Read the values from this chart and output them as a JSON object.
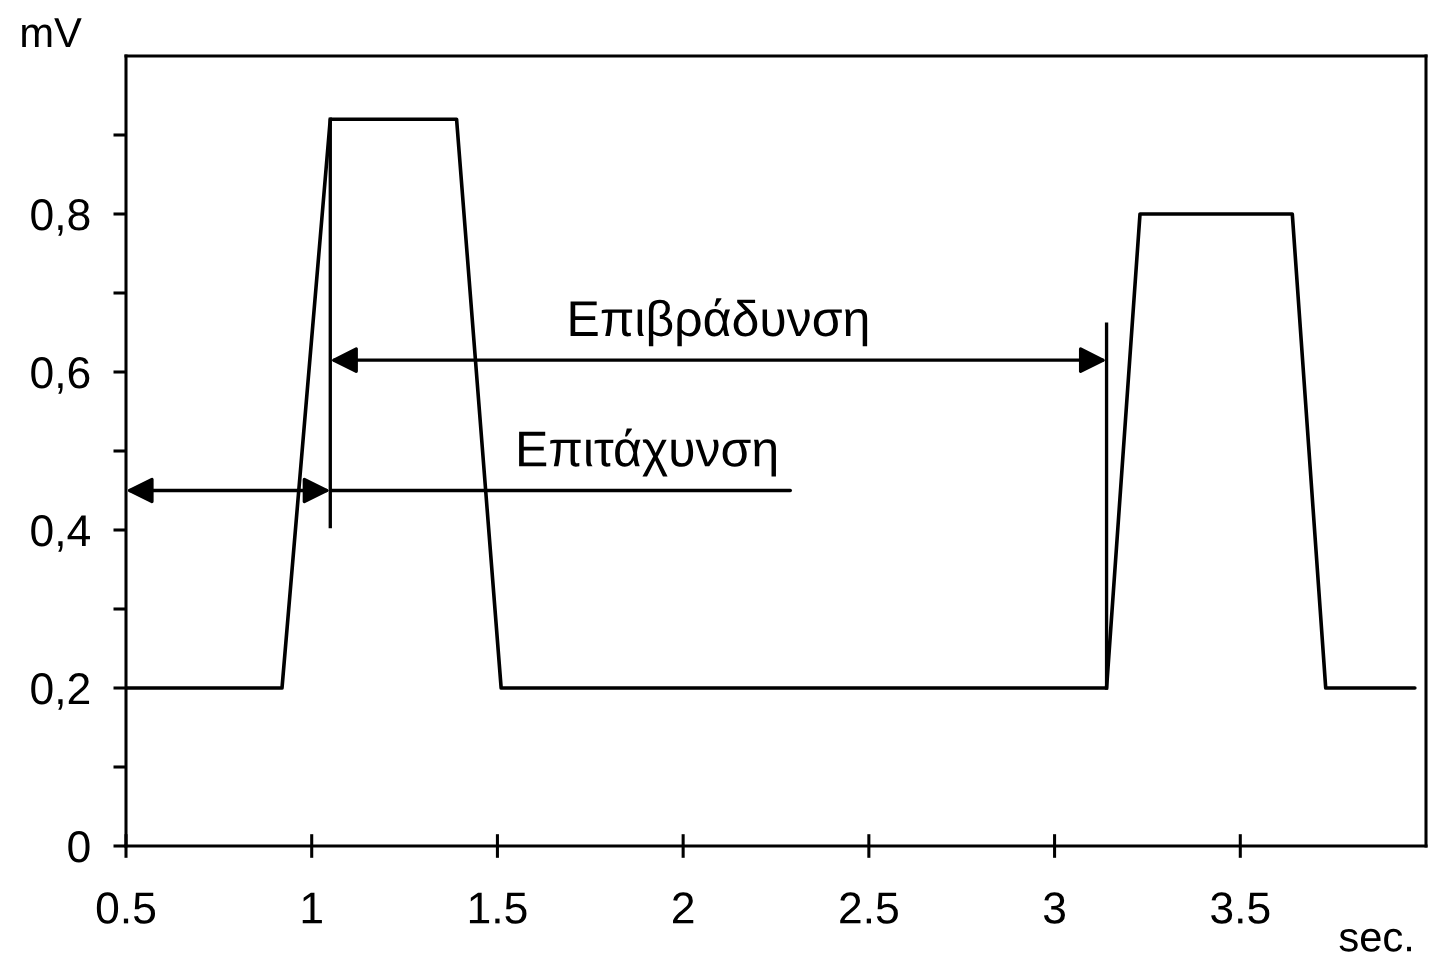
{
  "chart_data": {
    "type": "line",
    "xlabel": "sec.",
    "ylabel": "mV",
    "x": [
      0.5,
      0.92,
      1.05,
      1.39,
      1.51,
      3.14,
      3.23,
      3.64,
      3.73,
      3.97
    ],
    "values": [
      0.2,
      0.2,
      0.92,
      0.92,
      0.2,
      0.2,
      0.8,
      0.8,
      0.2,
      0.2
    ],
    "color": "#000000",
    "marker": "none",
    "line_style": "solid",
    "xlim": [
      0.5,
      4
    ],
    "ylim": [
      0,
      1
    ],
    "xticks": [
      0.5,
      1,
      1.5,
      2,
      2.5,
      3,
      3.5
    ],
    "yticks": [
      0,
      {
        "value": 0.1,
        "label": null
      },
      {
        "value": 0.2,
        "label": "0,2"
      },
      {
        "value": 0.3,
        "label": null
      },
      {
        "value": 0.4,
        "label": "0,4"
      },
      {
        "value": 0.5,
        "label": null
      },
      {
        "value": 0.6,
        "label": "0,6"
      },
      {
        "value": 0.7,
        "label": null
      },
      {
        "value": 0.8,
        "label": "0,8"
      },
      {
        "value": 0.9,
        "label": null
      }
    ],
    "ref_lines": [
      {
        "axis": "x",
        "value": 1.05,
        "label": null
      },
      {
        "axis": "x",
        "value": 3.14,
        "label": null
      }
    ],
    "annotations": [
      "Επιβράδυνση",
      {
        "text": "Επιτάχυνση",
        "x": 1.05,
        "y": 0.45
      }
    ]
  }
}
